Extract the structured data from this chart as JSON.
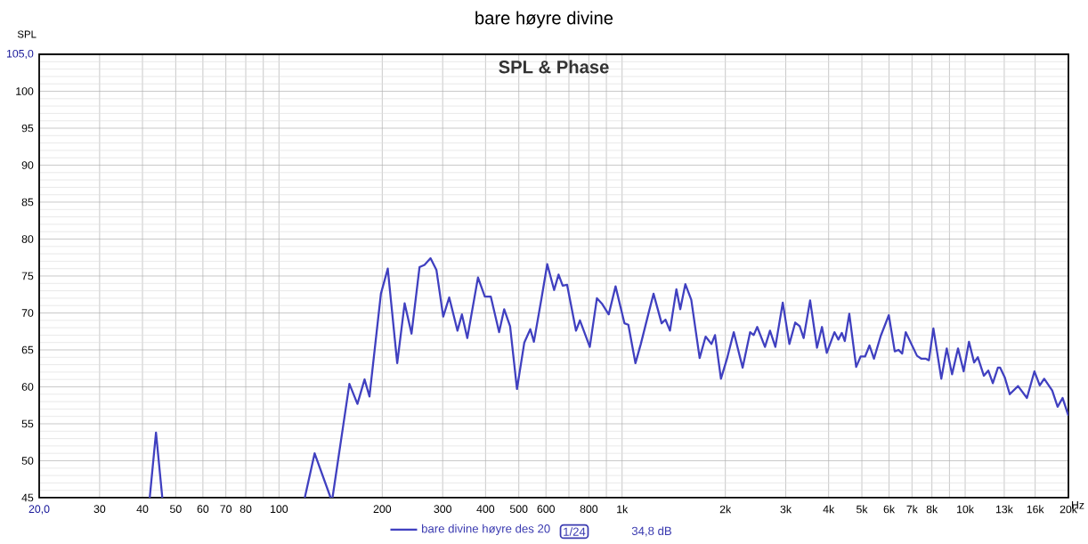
{
  "chart_data": {
    "type": "line",
    "title": "bare høyre divine",
    "subtitle": "SPL & Phase",
    "ylabel": "SPL",
    "xlabel": "Hz",
    "log": "x",
    "grid": true,
    "legend": "bottom",
    "line_style": "solid",
    "xlim": [
      20,
      20000
    ],
    "ylim": [
      45,
      105
    ],
    "xticks": [
      {
        "value": 20,
        "label": "20,0"
      },
      30,
      40,
      50,
      60,
      70,
      80,
      {
        "value": 90,
        "label": null
      },
      100,
      200,
      300,
      400,
      500,
      600,
      {
        "value": 700,
        "label": null
      },
      800,
      {
        "value": 900,
        "label": null
      },
      {
        "value": 1000,
        "label": "1k"
      },
      {
        "value": 2000,
        "label": "2k"
      },
      {
        "value": 3000,
        "label": "3k"
      },
      {
        "value": 4000,
        "label": "4k"
      },
      {
        "value": 5000,
        "label": "5k"
      },
      {
        "value": 6000,
        "label": "6k"
      },
      {
        "value": 7000,
        "label": "7k"
      },
      {
        "value": 8000,
        "label": "8k"
      },
      {
        "value": 9000,
        "label": null
      },
      {
        "value": 10000,
        "label": "10k"
      },
      {
        "value": 13000,
        "label": "13k"
      },
      {
        "value": 16000,
        "label": "16k"
      },
      {
        "value": 20000,
        "label": "20k"
      }
    ],
    "yticks": [
      45,
      50,
      55,
      60,
      65,
      70,
      75,
      80,
      85,
      90,
      95,
      100,
      {
        "value": 105,
        "label": "105,0"
      }
    ],
    "annotations": [
      "1/24",
      "34,8 dB"
    ],
    "x": [
      42.0,
      43.8,
      45.7,
      80,
      118.9,
      127,
      141.4,
      142.3,
      143.2,
      160.4,
      169.3,
      177.6,
      183.5,
      198.2,
      207.5,
      221.1,
      232.4,
      243.4,
      256.8,
      265.6,
      276.5,
      287.7,
      301.1,
      313.4,
      331.3,
      341.4,
      353.9,
      380.2,
      398.1,
      414.4,
      438.1,
      453.3,
      471.6,
      493.9,
      518.9,
      540.1,
      553.4,
      581.5,
      605.3,
      633.8,
      653.0,
      671.3,
      691.6,
      734.2,
      753.8,
      805.2,
      844.7,
      875.6,
      914.1,
      957.2,
      1016,
      1043,
      1094,
      1134,
      1192,
      1235,
      1304,
      1338,
      1379,
      1440,
      1478,
      1529,
      1591,
      1683,
      1752,
      1822,
      1866,
      1942,
      2022,
      2116,
      2246,
      2362,
      2419,
      2477,
      2609,
      2699,
      2798,
      2940,
      3074,
      3197,
      3294,
      3382,
      3533,
      3700,
      3826,
      3951,
      4159,
      4270,
      4371,
      4459,
      4595,
      4812,
      4958,
      5108,
      5263,
      5422,
      5675,
      5991,
      6235,
      6397,
      6553,
      6711,
      7240,
      7460,
      7686,
      7842,
      8080,
      8521,
      8836,
      9158,
      9533,
      9899,
      10260,
      10620,
      10890,
      11340,
      11680,
      12040,
      12460,
      12650,
      13040,
      13490,
      14260,
      15140,
      15920,
      16500,
      17000,
      17940,
      18600,
      19230,
      20000
    ],
    "series": [
      {
        "name": "bare divine høyre des 20",
        "color": "#4040c0",
        "values": [
          45,
          53.8,
          45,
          null,
          45,
          51.0,
          45,
          null,
          45,
          60.4,
          57.7,
          61.0,
          58.7,
          72.6,
          76.0,
          63.2,
          71.3,
          67.2,
          76.2,
          76.5,
          77.4,
          75.8,
          69.5,
          72.1,
          67.6,
          69.8,
          66.6,
          74.8,
          72.2,
          72.2,
          67.4,
          70.5,
          68.2,
          59.7,
          66.0,
          67.8,
          66.1,
          71.8,
          76.6,
          73.1,
          75.2,
          73.7,
          73.8,
          67.6,
          69.0,
          65.4,
          72.0,
          71.2,
          69.8,
          73.6,
          68.6,
          68.4,
          63.2,
          65.8,
          69.8,
          72.6,
          68.6,
          69.1,
          67.6,
          73.2,
          70.5,
          73.9,
          71.8,
          63.9,
          66.8,
          65.8,
          67.0,
          61.1,
          63.8,
          67.4,
          62.6,
          67.4,
          67.0,
          68.1,
          65.4,
          67.6,
          65.4,
          71.4,
          65.8,
          68.7,
          68.2,
          66.6,
          71.7,
          65.3,
          68.1,
          64.6,
          67.4,
          66.4,
          67.3,
          66.2,
          69.9,
          62.7,
          64.1,
          64.1,
          65.6,
          63.8,
          66.9,
          69.7,
          64.8,
          65.0,
          64.5,
          67.4,
          64.2,
          63.8,
          63.8,
          63.6,
          67.9,
          61.1,
          65.2,
          61.7,
          65.2,
          62.1,
          66.1,
          63.3,
          64.0,
          61.5,
          62.2,
          60.5,
          62.6,
          62.6,
          61.3,
          59.0,
          60.1,
          58.5,
          62.1,
          60.2,
          61.1,
          59.5,
          57.3,
          58.5,
          56.1
        ]
      }
    ]
  }
}
